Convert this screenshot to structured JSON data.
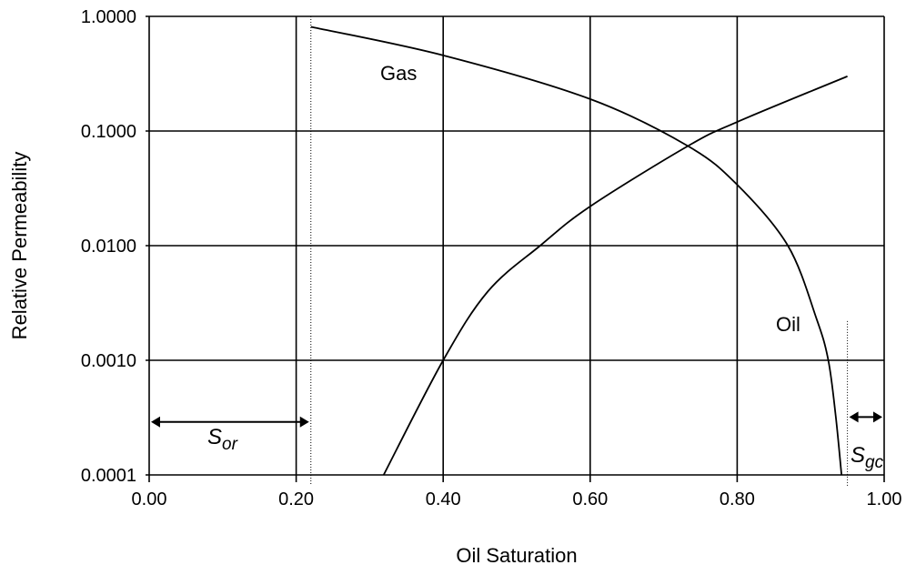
{
  "chart_data": {
    "type": "line",
    "title": "",
    "xlabel": "Oil Saturation",
    "ylabel": "Relative Permeability",
    "xlim": [
      0,
      1
    ],
    "ylim": [
      0.0001,
      1
    ],
    "yscale": "log",
    "grid": true,
    "x_ticks": [
      "0.00",
      "0.20",
      "0.40",
      "0.60",
      "0.80",
      "1.00"
    ],
    "x_tick_values": [
      0,
      0.2,
      0.4,
      0.6,
      0.8,
      1.0
    ],
    "y_ticks": [
      "1.0000",
      "0.1000",
      "0.0100",
      "0.0010",
      "0.0001"
    ],
    "y_tick_values": [
      1,
      0.1,
      0.01,
      0.001,
      0.0001
    ],
    "series": [
      {
        "name": "Gas",
        "x": [
          0.22,
          0.4,
          0.6,
          0.733,
          0.8,
          0.869,
          0.908,
          0.924,
          0.934,
          0.942
        ],
        "y": [
          0.81,
          0.457,
          0.19,
          0.074,
          0.034,
          0.01,
          0.0023,
          0.001,
          0.00033,
          0.0001
        ]
      },
      {
        "name": "Oil",
        "x": [
          0.319,
          0.4,
          0.461,
          0.532,
          0.6,
          0.733,
          0.8,
          0.95
        ],
        "y": [
          0.0001,
          0.001,
          0.004,
          0.01,
          0.022,
          0.074,
          0.12,
          0.3
        ]
      }
    ],
    "annotations": {
      "sor": {
        "main": "S",
        "sub": "or",
        "from": 0,
        "to": 0.22,
        "y": 0.00029
      },
      "sgc": {
        "main": "S",
        "sub": "gc",
        "from": 0.95,
        "to": 1.0,
        "y": 0.00032
      },
      "sor_line_x": 0.22,
      "sgc_line_x": 0.95,
      "sgc_line_top": 0.0022
    },
    "colors": {
      "line": "#000000",
      "background": "#ffffff"
    }
  }
}
